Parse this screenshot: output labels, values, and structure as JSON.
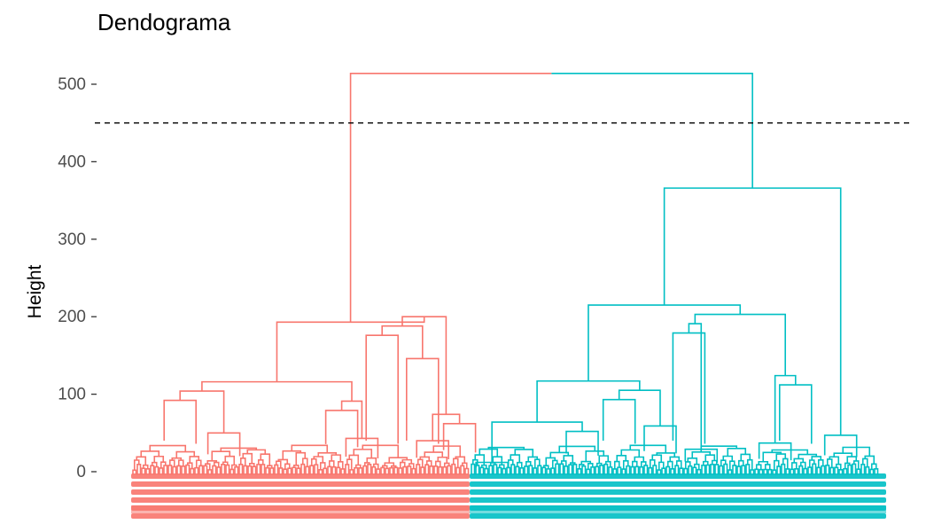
{
  "chart_data": {
    "type": "dendrogram",
    "title": "Dendograma",
    "xlabel": "",
    "ylabel": "Height",
    "ylim": [
      -50,
      530
    ],
    "yticks": [
      0,
      100,
      200,
      300,
      400,
      500
    ],
    "grid": false,
    "cut_height": 450,
    "root_height": 514,
    "clusters": [
      {
        "color": "#F8766D",
        "height": 193,
        "merges": [
          {
            "position": 0.14,
            "height": 92
          },
          {
            "position": 0.74,
            "height": 176
          },
          {
            "position": 0.86,
            "height": 146
          },
          {
            "position": 0.62,
            "height": 79
          },
          {
            "position": 0.27,
            "height": 50
          },
          {
            "position": 0.68,
            "height": 43
          },
          {
            "position": 0.89,
            "height": 40
          },
          {
            "position": 0.97,
            "height": 62
          }
        ]
      },
      {
        "color": "#00BFC4",
        "height": 366,
        "merges": [
          {
            "position": 0.05,
            "height": 12
          },
          {
            "position": 0.53,
            "height": 179
          },
          {
            "position": 0.36,
            "height": 93
          },
          {
            "position": 0.79,
            "height": 112
          },
          {
            "position": 0.27,
            "height": 52
          },
          {
            "position": 0.46,
            "height": 59
          },
          {
            "position": 0.74,
            "height": 37
          },
          {
            "position": 0.9,
            "height": 47
          },
          {
            "position": 0.56,
            "height": 29
          }
        ]
      }
    ]
  }
}
